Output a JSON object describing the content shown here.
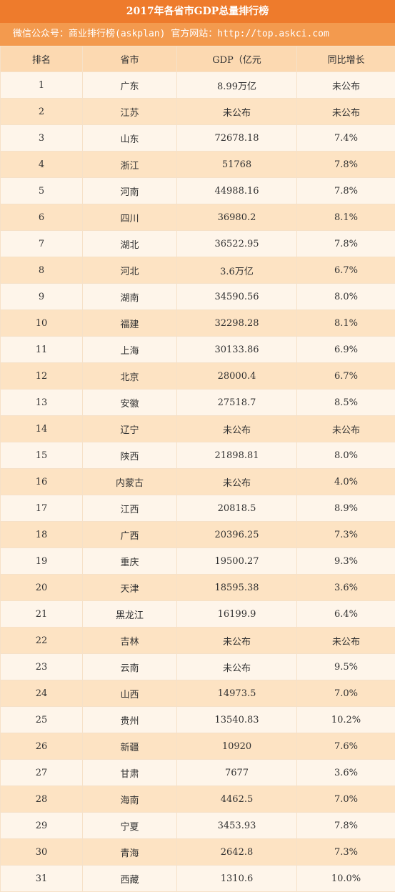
{
  "header": {
    "title": "2017年各省市GDP总量排行榜",
    "subtitle": "微信公众号：商业排行榜(askplan)  官方网站：http://top.askci.com"
  },
  "table": {
    "columns": [
      "排名",
      "省市",
      "GDP（亿元",
      "同比增长"
    ],
    "rows": [
      [
        "1",
        "广东",
        "8.99万亿",
        "未公布"
      ],
      [
        "2",
        "江苏",
        "未公布",
        "未公布"
      ],
      [
        "3",
        "山东",
        "72678.18",
        "7.4%"
      ],
      [
        "4",
        "浙江",
        "51768",
        "7.8%"
      ],
      [
        "5",
        "河南",
        "44988.16",
        "7.8%"
      ],
      [
        "6",
        "四川",
        "36980.2",
        "8.1%"
      ],
      [
        "7",
        "湖北",
        "36522.95",
        "7.8%"
      ],
      [
        "8",
        "河北",
        "3.6万亿",
        "6.7%"
      ],
      [
        "9",
        "湖南",
        "34590.56",
        "8.0%"
      ],
      [
        "10",
        "福建",
        "32298.28",
        "8.1%"
      ],
      [
        "11",
        "上海",
        "30133.86",
        "6.9%"
      ],
      [
        "12",
        "北京",
        "28000.4",
        "6.7%"
      ],
      [
        "13",
        "安徽",
        "27518.7",
        "8.5%"
      ],
      [
        "14",
        "辽宁",
        "未公布",
        "未公布"
      ],
      [
        "15",
        "陕西",
        "21898.81",
        "8.0%"
      ],
      [
        "16",
        "内蒙古",
        "未公布",
        "4.0%"
      ],
      [
        "17",
        "江西",
        "20818.5",
        "8.9%"
      ],
      [
        "18",
        "广西",
        "20396.25",
        "7.3%"
      ],
      [
        "19",
        "重庆",
        "19500.27",
        "9.3%"
      ],
      [
        "20",
        "天津",
        "18595.38",
        "3.6%"
      ],
      [
        "21",
        "黑龙江",
        "16199.9",
        "6.4%"
      ],
      [
        "22",
        "吉林",
        "未公布",
        "未公布"
      ],
      [
        "23",
        "云南",
        "未公布",
        "9.5%"
      ],
      [
        "24",
        "山西",
        "14973.5",
        "7.0%"
      ],
      [
        "25",
        "贵州",
        "13540.83",
        "10.2%"
      ],
      [
        "26",
        "新疆",
        "10920",
        "7.6%"
      ],
      [
        "27",
        "甘肃",
        "7677",
        "3.6%"
      ],
      [
        "28",
        "海南",
        "4462.5",
        "7.0%"
      ],
      [
        "29",
        "宁夏",
        "3453.93",
        "7.8%"
      ],
      [
        "30",
        "青海",
        "2642.8",
        "7.3%"
      ],
      [
        "31",
        "西藏",
        "1310.6",
        "10.0%"
      ]
    ]
  }
}
